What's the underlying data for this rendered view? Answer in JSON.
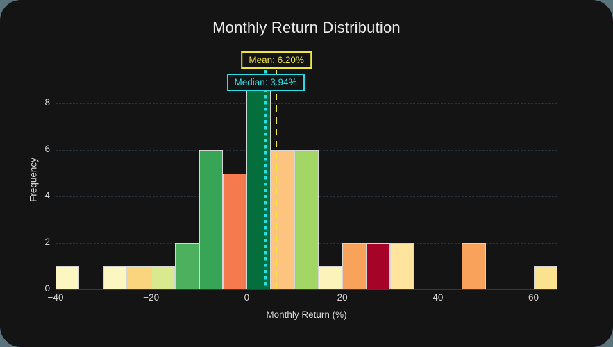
{
  "window": {
    "background": "#5a737d",
    "card_background": "#141414"
  },
  "styles": {
    "grid_color": "#2a3945",
    "axis_line_color": "#2e3b46",
    "tick_text_color": "#d6d6d6",
    "title_text_color": "#e9e9e9",
    "bar_edge_color": "#d6d6d6"
  },
  "chart_data": {
    "type": "histogram",
    "title": "Monthly Return Distribution",
    "xlabel": "Monthly Return (%)",
    "ylabel": "Frequency",
    "xlim": [
      -40,
      65
    ],
    "ylim": [
      0,
      9.45
    ],
    "grid": "horizontal-only",
    "legend": "none",
    "bin_width": 5,
    "bins": [
      {
        "start": -40,
        "end": -35,
        "count": 1,
        "color": "#fcf6c0"
      },
      {
        "start": -35,
        "end": -30,
        "count": 0,
        "color": null
      },
      {
        "start": -30,
        "end": -25,
        "count": 1,
        "color": "#fcf6c0"
      },
      {
        "start": -25,
        "end": -20,
        "count": 1,
        "color": "#fbd57e"
      },
      {
        "start": -20,
        "end": -15,
        "count": 1,
        "color": "#d9ea8e"
      },
      {
        "start": -15,
        "end": -10,
        "count": 2,
        "color": "#4cb05e"
      },
      {
        "start": -10,
        "end": -5,
        "count": 6,
        "color": "#38a556"
      },
      {
        "start": -5,
        "end": 0,
        "count": 5,
        "color": "#f57a4e"
      },
      {
        "start": 0,
        "end": 5,
        "count": 9,
        "color": "#046e3d"
      },
      {
        "start": 5,
        "end": 10,
        "count": 6,
        "color": "#fcc47e"
      },
      {
        "start": 10,
        "end": 15,
        "count": 6,
        "color": "#a2d766"
      },
      {
        "start": 15,
        "end": 20,
        "count": 1,
        "color": "#fcf3ba"
      },
      {
        "start": 20,
        "end": 25,
        "count": 2,
        "color": "#f9a25c"
      },
      {
        "start": 25,
        "end": 30,
        "count": 2,
        "color": "#a50327"
      },
      {
        "start": 30,
        "end": 35,
        "count": 2,
        "color": "#fee49c"
      },
      {
        "start": 35,
        "end": 40,
        "count": 0,
        "color": null
      },
      {
        "start": 40,
        "end": 45,
        "count": 0,
        "color": null
      },
      {
        "start": 45,
        "end": 50,
        "count": 2,
        "color": "#f9a25c"
      },
      {
        "start": 50,
        "end": 55,
        "count": 0,
        "color": null
      },
      {
        "start": 55,
        "end": 60,
        "count": 0,
        "color": null
      },
      {
        "start": 60,
        "end": 65,
        "count": 1,
        "color": "#fbe28e"
      }
    ],
    "x_ticks": [
      {
        "value": -40,
        "label": "−40"
      },
      {
        "value": -20,
        "label": "−20"
      },
      {
        "value": 0,
        "label": "0"
      },
      {
        "value": 20,
        "label": "20"
      },
      {
        "value": 40,
        "label": "40"
      },
      {
        "value": 60,
        "label": "60"
      }
    ],
    "y_ticks": [
      {
        "value": 0,
        "label": "0"
      },
      {
        "value": 2,
        "label": "2"
      },
      {
        "value": 4,
        "label": "4"
      },
      {
        "value": 6,
        "label": "6"
      },
      {
        "value": 8,
        "label": "8"
      }
    ],
    "mean": {
      "value": 6.2,
      "label": "Mean: 6.20%",
      "color": "#efe83a",
      "line_style": "dashed"
    },
    "median": {
      "value": 3.94,
      "label": "Median: 3.94%",
      "color": "#23dfe4",
      "line_style": "dotted"
    }
  }
}
